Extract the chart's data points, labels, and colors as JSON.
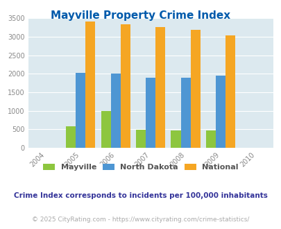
{
  "title": "Mayville Property Crime Index",
  "years": [
    2005,
    2006,
    2007,
    2008,
    2009
  ],
  "xlim": [
    2004,
    2010
  ],
  "ylim": [
    0,
    3500
  ],
  "yticks": [
    0,
    500,
    1000,
    1500,
    2000,
    2500,
    3000,
    3500
  ],
  "mayville": [
    575,
    1000,
    490,
    470,
    470
  ],
  "north_dakota": [
    2030,
    2005,
    1900,
    1890,
    1945
  ],
  "national": [
    3410,
    3330,
    3260,
    3195,
    3040
  ],
  "colors": {
    "mayville": "#8dc63f",
    "north_dakota": "#4e96d3",
    "national": "#f5a623"
  },
  "bar_width": 0.28,
  "background_color": "#dce9ef",
  "title_color": "#005aab",
  "title_fontsize": 11,
  "tick_color": "#888888",
  "note_text": "Crime Index corresponds to incidents per 100,000 inhabitants",
  "note_color": "#333399",
  "note_fontsize": 7.5,
  "copyright_text": "© 2025 CityRating.com - https://www.cityrating.com/crime-statistics/",
  "copyright_color": "#aaaaaa",
  "copyright_fontsize": 6.5,
  "legend_labels": [
    "Mayville",
    "North Dakota",
    "National"
  ],
  "legend_colors": [
    "#8dc63f",
    "#4e96d3",
    "#f5a623"
  ],
  "grid_color": "#ffffff",
  "legend_text_color": "#555555"
}
